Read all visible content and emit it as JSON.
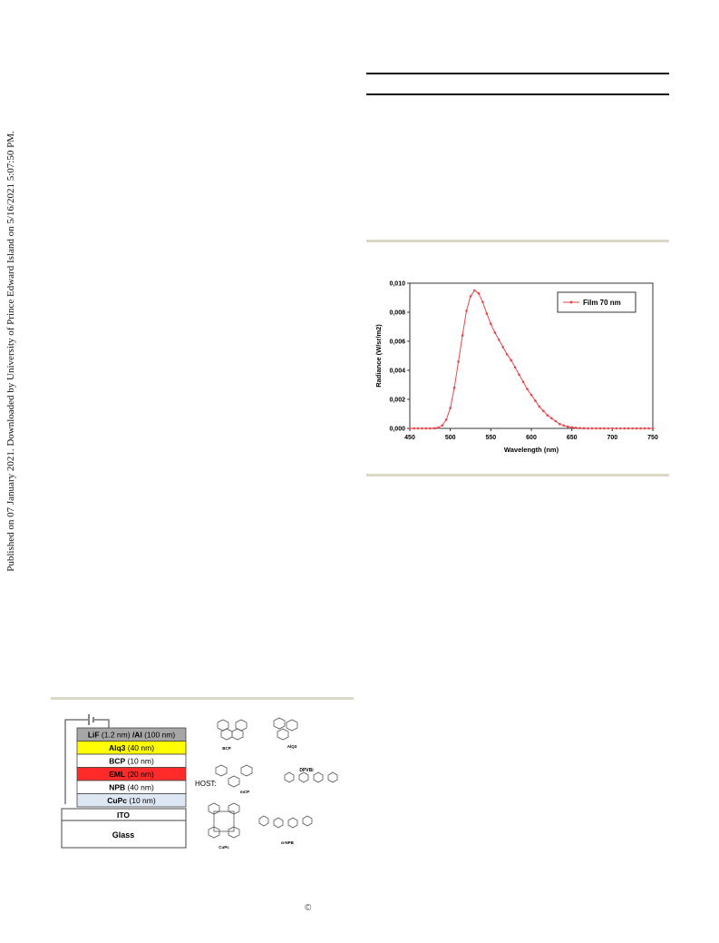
{
  "sidebar": {
    "text": "Published on 07 January 2021. Downloaded by University of Prince Edward Island on 5/16/2021 5:07:50 PM."
  },
  "colors": {
    "rule": "#dcd9c7",
    "series": "#e8474a",
    "lif": "#a6a6a6",
    "alq3": "#ffff00",
    "eml": "#ff2a2a",
    "cupc": "#dde7f3"
  },
  "chart_data": {
    "type": "line",
    "ylabel": "Radiance (W/sr/m2)",
    "xlabel": "Wavelength (nm)",
    "xlim": [
      450,
      750
    ],
    "ylim": [
      0,
      0.01
    ],
    "x_ticks": [
      "450",
      "500",
      "550",
      "600",
      "650",
      "700",
      "750"
    ],
    "y_ticks": [
      "0,000",
      "0,002",
      "0,004",
      "0,006",
      "0,008",
      "0,010"
    ],
    "legend_position": "top-right",
    "series": [
      {
        "name": "Film 70 nm",
        "x": [
          450,
          455,
          460,
          465,
          470,
          475,
          480,
          485,
          490,
          495,
          500,
          505,
          510,
          515,
          520,
          525,
          530,
          535,
          540,
          545,
          550,
          555,
          560,
          565,
          570,
          575,
          580,
          585,
          590,
          595,
          600,
          605,
          610,
          615,
          620,
          625,
          630,
          635,
          640,
          645,
          650,
          655,
          660,
          665,
          670,
          675,
          680,
          685,
          690,
          695,
          700,
          705,
          710,
          715,
          720,
          725,
          730,
          735,
          740,
          745,
          750
        ],
        "values": [
          0,
          0,
          0,
          0,
          0,
          0,
          1e-05,
          5e-05,
          0.0002,
          0.0006,
          0.0014,
          0.0028,
          0.0046,
          0.0064,
          0.0081,
          0.0091,
          0.0095,
          0.0093,
          0.0087,
          0.0079,
          0.0072,
          0.0066,
          0.0061,
          0.0056,
          0.0051,
          0.0047,
          0.0042,
          0.0037,
          0.0032,
          0.0027,
          0.0023,
          0.0019,
          0.0015,
          0.0012,
          0.0009,
          0.0007,
          0.0005,
          0.0003,
          0.0002,
          0.00012,
          7e-05,
          4e-05,
          2e-05,
          1e-05,
          0,
          0,
          0,
          0,
          0,
          0,
          0,
          0,
          0,
          0,
          0,
          0,
          0,
          0,
          0,
          0,
          0
        ]
      }
    ]
  },
  "device": {
    "layers": [
      {
        "bold": "LiF",
        "rest": " (1.2 nm) ",
        "bold2": "/Al",
        "rest2": " (100 nm)"
      },
      {
        "bold": "Alq3",
        "rest": " (40 nm)",
        "bold2": "",
        "rest2": ""
      },
      {
        "bold": "BCP",
        "rest": " (10 nm)",
        "bold2": "",
        "rest2": ""
      },
      {
        "bold": "EML",
        "rest": " (20 nm)",
        "bold2": "",
        "rest2": ""
      },
      {
        "bold": "NPB",
        "rest": " (40 nm)",
        "bold2": "",
        "rest2": ""
      },
      {
        "bold": "CuPc",
        "rest": " (10 nm)",
        "bold2": "",
        "rest2": ""
      }
    ],
    "ito": "ITO",
    "glass": "Glass",
    "host_label": "HOST:",
    "molecules": [
      "BCP",
      "AlQ3",
      "mCP",
      "DPVBi",
      "CuPc",
      "α-NPB"
    ]
  },
  "footer": {
    "symbol": "©"
  }
}
